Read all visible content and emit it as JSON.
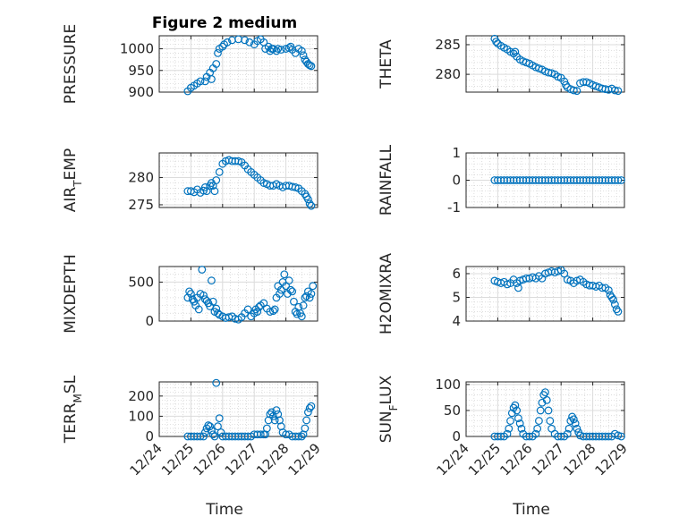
{
  "figure": {
    "title": "Figure 2 medium",
    "xlabel": "Time",
    "x_tick_labels": [
      "12/24",
      "12/25",
      "12/26",
      "12/27",
      "12/28",
      "12/29"
    ],
    "marker_color": "#0072BD"
  },
  "chart_data": [
    {
      "type": "scatter",
      "panel": "pressure",
      "ylabel": "PRESSURE",
      "xlim": [
        0,
        5
      ],
      "ylim": [
        900,
        1030
      ],
      "yticks": [
        900,
        950,
        1000
      ],
      "grid": true,
      "x": [
        0.9,
        1.0,
        1.1,
        1.2,
        1.3,
        1.45,
        1.5,
        1.6,
        1.65,
        1.7,
        1.8,
        1.85,
        1.9,
        2.0,
        2.05,
        2.15,
        2.3,
        2.5,
        2.7,
        2.85,
        3.0,
        3.1,
        3.2,
        3.3,
        3.35,
        3.45,
        3.5,
        3.55,
        3.6,
        3.7,
        3.75,
        3.85,
        4.0,
        4.1,
        4.15,
        4.2,
        4.3,
        4.4,
        4.5,
        4.55,
        4.6,
        4.65,
        4.7,
        4.75,
        4.8
      ],
      "y": [
        902,
        910,
        915,
        920,
        925,
        925,
        935,
        945,
        930,
        955,
        965,
        990,
        1000,
        1005,
        1010,
        1015,
        1020,
        1022,
        1020,
        1015,
        1010,
        1018,
        1022,
        1015,
        1000,
        1005,
        995,
        1000,
        1000,
        995,
        1000,
        998,
        1000,
        1002,
        1005,
        998,
        990,
        1000,
        995,
        985,
        975,
        970,
        965,
        962,
        960
      ]
    },
    {
      "type": "scatter",
      "panel": "theta",
      "ylabel": "THETA",
      "xlim": [
        0,
        5
      ],
      "ylim": [
        277,
        286.5
      ],
      "yticks": [
        280,
        285
      ],
      "grid": true,
      "x": [
        0.9,
        0.95,
        1.0,
        1.1,
        1.2,
        1.3,
        1.4,
        1.5,
        1.55,
        1.6,
        1.7,
        1.8,
        1.9,
        2.0,
        2.1,
        2.2,
        2.3,
        2.4,
        2.5,
        2.6,
        2.7,
        2.8,
        2.9,
        3.0,
        3.1,
        3.15,
        3.2,
        3.3,
        3.4,
        3.5,
        3.6,
        3.7,
        3.8,
        3.9,
        4.0,
        4.1,
        4.2,
        4.3,
        4.4,
        4.5,
        4.6,
        4.7,
        4.8
      ],
      "y": [
        286,
        285.5,
        285.2,
        284.8,
        284.5,
        284.2,
        283.8,
        283.5,
        283.8,
        283,
        282.5,
        282.2,
        282,
        281.8,
        281.5,
        281.2,
        281,
        280.8,
        280.5,
        280.3,
        280.2,
        280,
        279.6,
        279.4,
        278.8,
        278.2,
        277.8,
        277.5,
        277.3,
        277.2,
        278.5,
        278.7,
        278.7,
        278.5,
        278.2,
        278,
        277.8,
        277.6,
        277.5,
        277.4,
        277.6,
        277.3,
        277.2
      ]
    },
    {
      "type": "scatter",
      "panel": "airtemp",
      "ylabel": "AIR_TEMP",
      "xlim": [
        0,
        5
      ],
      "ylim": [
        274.5,
        284.5
      ],
      "yticks": [
        275,
        280
      ],
      "grid": true,
      "x": [
        0.9,
        1.0,
        1.1,
        1.2,
        1.3,
        1.4,
        1.45,
        1.5,
        1.6,
        1.65,
        1.7,
        1.75,
        1.8,
        1.9,
        2.0,
        2.1,
        2.2,
        2.3,
        2.4,
        2.5,
        2.6,
        2.7,
        2.8,
        2.9,
        3.0,
        3.1,
        3.2,
        3.3,
        3.4,
        3.5,
        3.6,
        3.7,
        3.8,
        3.9,
        4.0,
        4.1,
        4.2,
        4.3,
        4.4,
        4.5,
        4.6,
        4.65,
        4.7,
        4.75,
        4.8
      ],
      "y": [
        277.5,
        277.5,
        277.3,
        277.8,
        277.2,
        277.6,
        278.2,
        277.5,
        278.5,
        279,
        278.5,
        277.5,
        279.5,
        281,
        282.5,
        283,
        283.2,
        283,
        283,
        283,
        282.8,
        282.2,
        281.5,
        281,
        280.5,
        280,
        279.5,
        279,
        278.8,
        278.5,
        278.5,
        278.8,
        278.5,
        278.2,
        278.5,
        278.5,
        278.3,
        278.2,
        278,
        277.5,
        277,
        276.5,
        276,
        275.2,
        274.8
      ]
    },
    {
      "type": "scatter",
      "panel": "rainfall",
      "ylabel": "RAINFALL",
      "xlim": [
        0,
        5
      ],
      "ylim": [
        -1,
        1
      ],
      "yticks": [
        -1,
        0,
        1
      ],
      "grid": true,
      "x": [
        0.9,
        1.0,
        1.1,
        1.2,
        1.3,
        1.4,
        1.5,
        1.6,
        1.7,
        1.8,
        1.9,
        2.0,
        2.1,
        2.2,
        2.3,
        2.4,
        2.5,
        2.6,
        2.7,
        2.8,
        2.9,
        3.0,
        3.1,
        3.2,
        3.3,
        3.4,
        3.5,
        3.6,
        3.7,
        3.8,
        3.9,
        4.0,
        4.1,
        4.2,
        4.3,
        4.4,
        4.5,
        4.6,
        4.7,
        4.8,
        4.9
      ],
      "y": [
        0,
        0,
        0,
        0,
        0,
        0,
        0,
        0,
        0,
        0,
        0,
        0,
        0,
        0,
        0,
        0,
        0,
        0,
        0,
        0,
        0,
        0,
        0,
        0,
        0,
        0,
        0,
        0,
        0,
        0,
        0,
        0,
        0,
        0,
        0,
        0,
        0,
        0,
        0,
        0,
        0
      ]
    },
    {
      "type": "scatter",
      "panel": "mixdepth",
      "ylabel": "MIXDEPTH",
      "xlim": [
        0,
        5
      ],
      "ylim": [
        0,
        700
      ],
      "yticks": [
        0,
        500
      ],
      "grid": true,
      "x": [
        0.9,
        0.95,
        1.0,
        1.05,
        1.1,
        1.15,
        1.2,
        1.25,
        1.3,
        1.35,
        1.4,
        1.45,
        1.5,
        1.55,
        1.6,
        1.65,
        1.7,
        1.75,
        1.8,
        1.85,
        1.9,
        2.0,
        2.1,
        2.2,
        2.3,
        2.4,
        2.5,
        2.6,
        2.7,
        2.8,
        2.9,
        3.0,
        3.05,
        3.1,
        3.15,
        3.2,
        3.3,
        3.4,
        3.5,
        3.6,
        3.65,
        3.7,
        3.75,
        3.8,
        3.85,
        3.9,
        3.95,
        4.0,
        4.05,
        4.1,
        4.15,
        4.2,
        4.25,
        4.3,
        4.35,
        4.4,
        4.45,
        4.5,
        4.55,
        4.6,
        4.65,
        4.7,
        4.75,
        4.8,
        4.85
      ],
      "y": [
        300,
        380,
        350,
        280,
        250,
        200,
        300,
        150,
        350,
        660,
        330,
        280,
        260,
        230,
        190,
        520,
        250,
        120,
        160,
        100,
        80,
        60,
        40,
        50,
        60,
        30,
        20,
        50,
        100,
        150,
        60,
        100,
        150,
        120,
        180,
        200,
        230,
        160,
        120,
        130,
        150,
        300,
        450,
        350,
        400,
        500,
        600,
        450,
        350,
        520,
        400,
        380,
        250,
        120,
        90,
        180,
        100,
        60,
        200,
        300,
        320,
        380,
        300,
        350,
        450
      ]
    },
    {
      "type": "scatter",
      "panel": "h2omixra",
      "ylabel": "H2OMIXRA",
      "xlim": [
        0,
        5
      ],
      "ylim": [
        4,
        6.3
      ],
      "yticks": [
        4,
        5,
        6
      ],
      "grid": true,
      "x": [
        0.9,
        1.0,
        1.1,
        1.2,
        1.3,
        1.4,
        1.5,
        1.6,
        1.65,
        1.7,
        1.8,
        1.9,
        2.0,
        2.1,
        2.2,
        2.3,
        2.4,
        2.5,
        2.6,
        2.7,
        2.8,
        2.9,
        3.0,
        3.1,
        3.2,
        3.3,
        3.4,
        3.5,
        3.6,
        3.7,
        3.8,
        3.9,
        4.0,
        4.1,
        4.2,
        4.3,
        4.4,
        4.5,
        4.55,
        4.6,
        4.65,
        4.7,
        4.75,
        4.8
      ],
      "y": [
        5.7,
        5.65,
        5.6,
        5.65,
        5.55,
        5.6,
        5.75,
        5.6,
        5.4,
        5.7,
        5.75,
        5.8,
        5.8,
        5.85,
        5.8,
        5.9,
        5.8,
        6.0,
        6.05,
        6.1,
        6.05,
        6.1,
        6.15,
        6.0,
        5.75,
        5.7,
        5.6,
        5.7,
        5.75,
        5.65,
        5.55,
        5.5,
        5.5,
        5.45,
        5.5,
        5.4,
        5.4,
        5.3,
        5.1,
        5.0,
        4.9,
        4.7,
        4.5,
        4.4
      ]
    },
    {
      "type": "scatter",
      "panel": "terrmsl",
      "ylabel": "TERR_MSL",
      "xlim": [
        0,
        5
      ],
      "ylim": [
        0,
        270
      ],
      "yticks": [
        0,
        100,
        200
      ],
      "grid": true,
      "x": [
        0.9,
        1.0,
        1.1,
        1.2,
        1.3,
        1.4,
        1.45,
        1.5,
        1.55,
        1.6,
        1.65,
        1.7,
        1.75,
        1.8,
        1.85,
        1.9,
        1.95,
        2.0,
        2.1,
        2.2,
        2.3,
        2.4,
        2.5,
        2.6,
        2.7,
        2.8,
        2.9,
        3.0,
        3.1,
        3.2,
        3.3,
        3.35,
        3.4,
        3.45,
        3.5,
        3.55,
        3.6,
        3.65,
        3.7,
        3.75,
        3.8,
        3.85,
        3.9,
        4.0,
        4.1,
        4.2,
        4.3,
        4.4,
        4.5,
        4.55,
        4.6,
        4.65,
        4.7,
        4.75,
        4.8
      ],
      "y": [
        0,
        0,
        0,
        0,
        0,
        0,
        20,
        40,
        55,
        50,
        30,
        10,
        0,
        265,
        50,
        90,
        20,
        0,
        0,
        0,
        0,
        0,
        0,
        0,
        0,
        0,
        0,
        10,
        10,
        10,
        10,
        10,
        40,
        80,
        110,
        120,
        100,
        80,
        130,
        110,
        80,
        50,
        20,
        10,
        10,
        0,
        0,
        0,
        0,
        10,
        40,
        80,
        120,
        140,
        150
      ]
    },
    {
      "type": "scatter",
      "panel": "sunflux",
      "ylabel": "SUN_FLUX",
      "xlim": [
        0,
        5
      ],
      "ylim": [
        0,
        105
      ],
      "yticks": [
        0,
        50,
        100
      ],
      "grid": true,
      "x": [
        0.9,
        1.0,
        1.1,
        1.2,
        1.3,
        1.35,
        1.4,
        1.45,
        1.5,
        1.55,
        1.6,
        1.65,
        1.7,
        1.75,
        1.8,
        1.9,
        2.0,
        2.1,
        2.2,
        2.25,
        2.3,
        2.35,
        2.4,
        2.45,
        2.5,
        2.55,
        2.6,
        2.65,
        2.7,
        2.8,
        2.9,
        3.0,
        3.1,
        3.2,
        3.25,
        3.3,
        3.35,
        3.4,
        3.45,
        3.5,
        3.55,
        3.6,
        3.7,
        3.8,
        3.9,
        4.0,
        4.1,
        4.2,
        4.3,
        4.4,
        4.5,
        4.6,
        4.7,
        4.8,
        4.9
      ],
      "y": [
        0,
        0,
        0,
        0,
        5,
        15,
        30,
        45,
        55,
        60,
        50,
        35,
        25,
        15,
        5,
        0,
        0,
        0,
        5,
        15,
        30,
        50,
        65,
        80,
        85,
        70,
        50,
        30,
        15,
        5,
        0,
        0,
        0,
        5,
        15,
        30,
        38,
        33,
        25,
        15,
        8,
        2,
        0,
        0,
        0,
        0,
        0,
        0,
        0,
        0,
        0,
        0,
        5,
        2,
        0
      ]
    }
  ]
}
